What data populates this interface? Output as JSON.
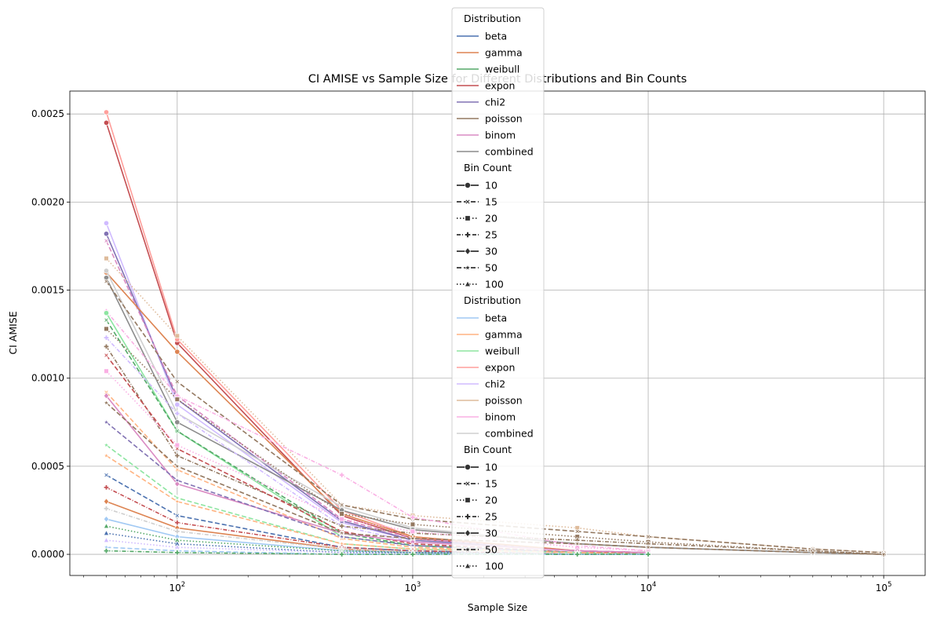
{
  "chart_data": {
    "type": "line",
    "title": "CI AMISE vs Sample Size for Different Distributions and Bin Counts",
    "xlabel": "Sample Size",
    "ylabel": "CI AMISE",
    "xscale": "log",
    "xlim": [
      35,
      150000
    ],
    "ylim": [
      -0.00012,
      0.00263
    ],
    "x_ticks": [
      {
        "value": 100,
        "base": "10",
        "exp": "2"
      },
      {
        "value": 1000,
        "base": "10",
        "exp": "3"
      },
      {
        "value": 10000,
        "base": "10",
        "exp": "4"
      },
      {
        "value": 100000,
        "base": "10",
        "exp": "5"
      }
    ],
    "y_ticks": [
      {
        "value": 0,
        "label": "0.0000"
      },
      {
        "value": 0.0005,
        "label": "0.0005"
      },
      {
        "value": 0.001,
        "label": "0.0010"
      },
      {
        "value": 0.0015,
        "label": "0.0015"
      },
      {
        "value": 0.002,
        "label": "0.0020"
      },
      {
        "value": 0.0025,
        "label": "0.0025"
      }
    ],
    "grid": true,
    "legend_placement": "top-center",
    "x": [
      50,
      100,
      500,
      1000,
      5000,
      10000,
      50000,
      100000
    ],
    "palette_dark": {
      "beta": "#4c72b0",
      "gamma": "#dd8452",
      "weibull": "#55a868",
      "expon": "#c44e52",
      "chi2": "#8172b3",
      "poisson": "#937860",
      "binom": "#da8bc3",
      "combined": "#8c8c8c"
    },
    "palette_light": {
      "beta": "#a1c9f4",
      "gamma": "#ffb482",
      "weibull": "#8de5a1",
      "expon": "#ff9f9b",
      "chi2": "#d0bbff",
      "poisson": "#debb9b",
      "binom": "#fab0e4",
      "combined": "#cfcfcf"
    },
    "series": [
      {
        "distribution": "expon",
        "palette": "dark",
        "bins": "10",
        "values": [
          0.00245,
          0.0012,
          0.00022,
          9e-05,
          2e-05,
          1e-05,
          null,
          null
        ]
      },
      {
        "distribution": "expon",
        "palette": "light",
        "bins": "10",
        "values": [
          0.00251,
          0.00122,
          0.00025,
          0.0001,
          2e-05,
          1e-05,
          null,
          null
        ]
      },
      {
        "distribution": "chi2",
        "palette": "light",
        "bins": "10",
        "values": [
          0.00188,
          0.00085,
          0.00018,
          8e-05,
          2e-05,
          1e-05,
          null,
          null
        ]
      },
      {
        "distribution": "chi2",
        "palette": "dark",
        "bins": "10",
        "values": [
          0.00182,
          0.00088,
          0.00019,
          8e-05,
          2e-05,
          1e-05,
          null,
          null
        ]
      },
      {
        "distribution": "binom",
        "palette": "dark",
        "bins": "15",
        "values": [
          0.00178,
          0.0009,
          0.0002,
          9e-05,
          2e-05,
          1e-05,
          null,
          null
        ]
      },
      {
        "distribution": "poisson",
        "palette": "light",
        "bins": "20",
        "values": [
          0.00168,
          0.00124,
          0.00028,
          0.00022,
          0.00015,
          0.0001,
          3e-05,
          1e-05
        ]
      },
      {
        "distribution": "gamma",
        "palette": "dark",
        "bins": "10",
        "values": [
          0.0016,
          0.00115,
          0.00023,
          0.0001,
          2e-05,
          1e-05,
          null,
          null
        ]
      },
      {
        "distribution": "combined",
        "palette": "light",
        "bins": "10",
        "values": [
          0.00161,
          0.0008,
          0.00027,
          0.00015,
          6e-05,
          4e-05,
          1e-05,
          0.0
        ]
      },
      {
        "distribution": "combined",
        "palette": "dark",
        "bins": "10",
        "values": [
          0.00157,
          0.00075,
          0.00025,
          0.00014,
          6e-05,
          4e-05,
          1e-05,
          0.0
        ]
      },
      {
        "distribution": "poisson",
        "palette": "dark",
        "bins": "15",
        "values": [
          0.00155,
          0.00098,
          0.00028,
          0.0002,
          0.00013,
          0.0001,
          3e-05,
          1e-05
        ]
      },
      {
        "distribution": "binom",
        "palette": "light",
        "bins": "25",
        "values": [
          0.00138,
          0.0009,
          0.00045,
          0.00021,
          5e-05,
          2e-05,
          null,
          null
        ]
      },
      {
        "distribution": "weibull",
        "palette": "light",
        "bins": "10",
        "values": [
          0.00137,
          0.0007,
          0.0001,
          5e-05,
          1e-05,
          0.0,
          null,
          null
        ]
      },
      {
        "distribution": "weibull",
        "palette": "dark",
        "bins": "15",
        "values": [
          0.00133,
          0.0007,
          0.00012,
          5e-05,
          1e-05,
          0.0,
          null,
          null
        ]
      },
      {
        "distribution": "poisson",
        "palette": "dark",
        "bins": "20",
        "values": [
          0.00128,
          0.00088,
          0.00023,
          0.00017,
          0.0001,
          7e-05,
          2e-05,
          0.0
        ]
      },
      {
        "distribution": "chi2",
        "palette": "light",
        "bins": "25",
        "values": [
          0.00123,
          0.0008,
          0.00016,
          7e-05,
          2e-05,
          1e-05,
          null,
          null
        ]
      },
      {
        "distribution": "poisson",
        "palette": "dark",
        "bins": "25",
        "values": [
          0.00118,
          0.00056,
          0.00016,
          0.00012,
          8e-05,
          6e-05,
          2e-05,
          0.0
        ]
      },
      {
        "distribution": "expon",
        "palette": "dark",
        "bins": "15",
        "values": [
          0.00113,
          0.0006,
          0.00013,
          6e-05,
          1e-05,
          1e-05,
          null,
          null
        ]
      },
      {
        "distribution": "binom",
        "palette": "light",
        "bins": "20",
        "values": [
          0.00104,
          0.00062,
          0.0002,
          0.00013,
          4e-05,
          2e-05,
          null,
          null
        ]
      },
      {
        "distribution": "gamma",
        "palette": "light",
        "bins": "15",
        "values": [
          0.00092,
          0.00048,
          9e-05,
          4e-05,
          1e-05,
          0.0,
          null,
          null
        ]
      },
      {
        "distribution": "binom",
        "palette": "dark",
        "bins": "30",
        "values": [
          0.0009,
          0.0004,
          0.00012,
          7e-05,
          2e-05,
          1e-05,
          null,
          null
        ]
      },
      {
        "distribution": "poisson",
        "palette": "dark",
        "bins": "50",
        "values": [
          0.00086,
          0.0005,
          0.00012,
          9e-05,
          6e-05,
          4e-05,
          1e-05,
          0.0
        ]
      },
      {
        "distribution": "chi2",
        "palette": "dark",
        "bins": "50",
        "values": [
          0.00075,
          0.00042,
          0.0001,
          5e-05,
          1e-05,
          0.0,
          null,
          null
        ]
      },
      {
        "distribution": "weibull",
        "palette": "light",
        "bins": "50",
        "values": [
          0.00062,
          0.00032,
          6e-05,
          3e-05,
          1e-05,
          0.0,
          null,
          null
        ]
      },
      {
        "distribution": "gamma",
        "palette": "light",
        "bins": "50",
        "values": [
          0.00056,
          0.0003,
          6e-05,
          3e-05,
          1e-05,
          0.0,
          null,
          null
        ]
      },
      {
        "distribution": "beta",
        "palette": "dark",
        "bins": "15",
        "values": [
          0.00045,
          0.00022,
          4e-05,
          2e-05,
          0.0,
          0.0,
          null,
          null
        ]
      },
      {
        "distribution": "expon",
        "palette": "dark",
        "bins": "25",
        "values": [
          0.00038,
          0.00018,
          4e-05,
          2e-05,
          0.0,
          0.0,
          null,
          null
        ]
      },
      {
        "distribution": "gamma",
        "palette": "dark",
        "bins": "30",
        "values": [
          0.0003,
          0.00015,
          3e-05,
          1e-05,
          0.0,
          0.0,
          null,
          null
        ]
      },
      {
        "distribution": "combined",
        "palette": "light",
        "bins": "25",
        "values": [
          0.00026,
          0.00013,
          3e-05,
          1e-05,
          0.0,
          0.0,
          null,
          null
        ]
      },
      {
        "distribution": "beta",
        "palette": "light",
        "bins": "30",
        "values": [
          0.0002,
          0.0001,
          2e-05,
          1e-05,
          0.0,
          0.0,
          null,
          null
        ]
      },
      {
        "distribution": "weibull",
        "palette": "dark",
        "bins": "100",
        "values": [
          0.00016,
          8e-05,
          2e-05,
          1e-05,
          0.0,
          0.0,
          null,
          null
        ]
      },
      {
        "distribution": "beta",
        "palette": "dark",
        "bins": "100",
        "values": [
          0.00012,
          6e-05,
          1e-05,
          1e-05,
          0.0,
          0.0,
          null,
          null
        ]
      },
      {
        "distribution": "chi2",
        "palette": "light",
        "bins": "100",
        "values": [
          8e-05,
          4e-05,
          1e-05,
          0.0,
          0.0,
          0.0,
          null,
          null
        ]
      },
      {
        "distribution": "beta",
        "palette": "light",
        "bins": "50",
        "values": [
          4e-05,
          2e-05,
          0.0,
          0.0,
          0.0,
          0.0,
          null,
          null
        ]
      },
      {
        "distribution": "weibull",
        "palette": "dark",
        "bins": "25",
        "values": [
          2e-05,
          1e-05,
          0.0,
          0.0,
          0.0,
          0.0,
          null,
          null
        ]
      }
    ],
    "legend": {
      "groups": [
        {
          "palette": "dark",
          "title": "Distribution",
          "items": [
            "beta",
            "gamma",
            "weibull",
            "expon",
            "chi2",
            "poisson",
            "binom",
            "combined"
          ]
        },
        {
          "palette": "dark",
          "title": "Bin Count",
          "items": [
            "10",
            "15",
            "20",
            "25",
            "30",
            "50",
            "100"
          ]
        },
        {
          "palette": "light",
          "title": "Distribution",
          "items": [
            "beta",
            "gamma",
            "weibull",
            "expon",
            "chi2",
            "poisson",
            "binom",
            "combined"
          ]
        },
        {
          "palette": "light",
          "title": "Bin Count",
          "items": [
            "10",
            "15",
            "20",
            "25",
            "30",
            "50",
            "100"
          ]
        }
      ]
    },
    "bin_styles": {
      "10": {
        "dash": "",
        "marker": "circle"
      },
      "15": {
        "dash": "6,3",
        "marker": "x"
      },
      "20": {
        "dash": "1.5,2.5",
        "marker": "square"
      },
      "25": {
        "dash": "5,2,1,2",
        "marker": "plus"
      },
      "30": {
        "dash": "",
        "marker": "diamond"
      },
      "50": {
        "dash": "6,3",
        "marker": "star"
      },
      "100": {
        "dash": "1.5,2.5",
        "marker": "triangle"
      }
    }
  }
}
